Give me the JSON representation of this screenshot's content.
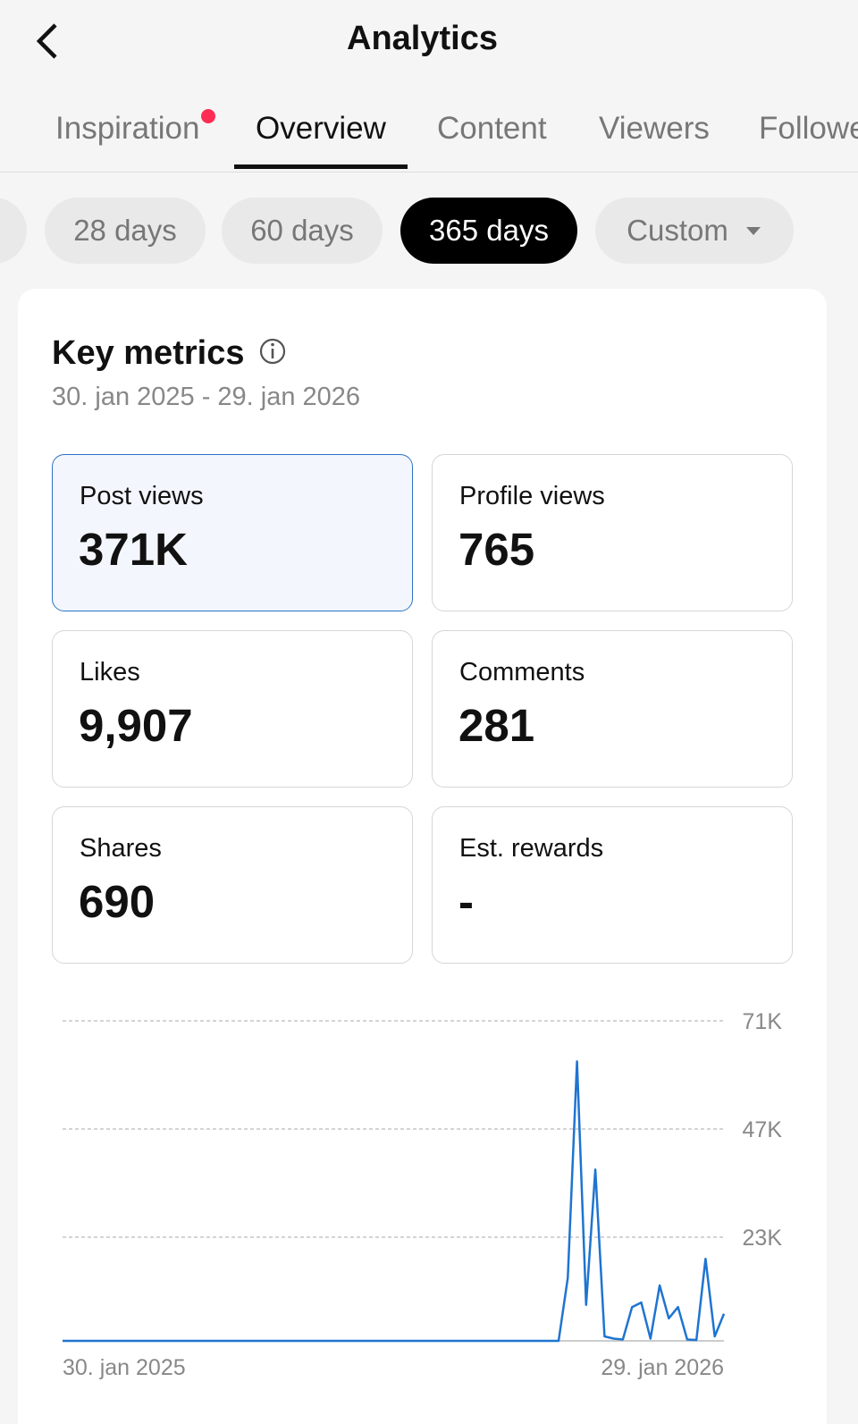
{
  "header": {
    "title": "Analytics"
  },
  "tabs": [
    {
      "label": "Inspiration",
      "dot": true
    },
    {
      "label": "Overview",
      "active": true
    },
    {
      "label": "Content"
    },
    {
      "label": "Viewers"
    },
    {
      "label": "Followers"
    }
  ],
  "periods": [
    {
      "label": "28 days"
    },
    {
      "label": "60 days"
    },
    {
      "label": "365 days",
      "active": true
    },
    {
      "label": "Custom",
      "dropdown": true
    }
  ],
  "card": {
    "title": "Key metrics",
    "date_range": "30. jan 2025 - 29. jan 2026"
  },
  "metrics": [
    {
      "label": "Post views",
      "value": "371K",
      "selected": true
    },
    {
      "label": "Profile views",
      "value": "765"
    },
    {
      "label": "Likes",
      "value": "9,907"
    },
    {
      "label": "Comments",
      "value": "281"
    },
    {
      "label": "Shares",
      "value": "690"
    },
    {
      "label": "Est. rewards",
      "value": "-"
    }
  ],
  "chart_data": {
    "type": "line",
    "color": "#1f74d0",
    "categories": [
      "30. jan 2025",
      null,
      null,
      null,
      null,
      null,
      null,
      null,
      null,
      null,
      null,
      null,
      null,
      null,
      null,
      null,
      null,
      null,
      null,
      null,
      null,
      null,
      null,
      null,
      null,
      null,
      null,
      null,
      null,
      null,
      null,
      null,
      null,
      null,
      null,
      null,
      null,
      null,
      null,
      null,
      null,
      null,
      null,
      null,
      null,
      null,
      null,
      null,
      null,
      null,
      null,
      null,
      null,
      null,
      null,
      null,
      null,
      null,
      null,
      null,
      null,
      null,
      null,
      null,
      null,
      null,
      null,
      null,
      null,
      null,
      null,
      null,
      "29. jan 2026"
    ],
    "values": [
      0,
      0,
      0,
      0,
      0,
      0,
      0,
      0,
      0,
      0,
      0,
      0,
      0,
      0,
      0,
      0,
      0,
      0,
      0,
      0,
      0,
      0,
      0,
      0,
      0,
      0,
      0,
      0,
      0,
      0,
      0,
      0,
      0,
      0,
      0,
      0,
      0,
      0,
      0,
      0,
      0,
      0,
      0,
      0,
      0,
      0,
      0,
      0,
      0,
      0,
      0,
      0,
      0,
      0,
      0,
      14000,
      62000,
      8000,
      38000,
      1000,
      500,
      300,
      7500,
      8500,
      500,
      12300,
      5000,
      7500,
      300,
      200,
      18200,
      1000,
      6000
    ],
    "ylim": [
      0,
      71000
    ],
    "yticks": [
      {
        "value": 23000,
        "label": "23K"
      },
      {
        "value": 47000,
        "label": "47K"
      },
      {
        "value": 71000,
        "label": "71K"
      }
    ],
    "grid": true
  }
}
